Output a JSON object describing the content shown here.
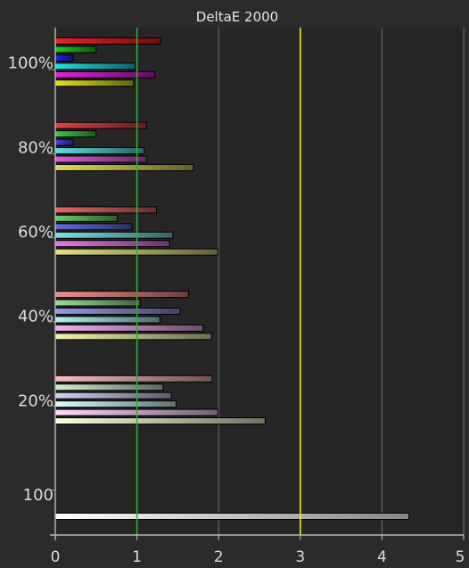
{
  "chart_data": {
    "type": "bar",
    "orientation": "horizontal",
    "title": "DeltaE 2000",
    "xlabel": "",
    "ylabel": "",
    "xlim": [
      0,
      5
    ],
    "x_ticks": [
      "0",
      "1",
      "2",
      "3",
      "4",
      "5"
    ],
    "grid": true,
    "reference_lines": [
      {
        "value": 1,
        "color": "#2fae2f"
      },
      {
        "value": 3,
        "color": "#f2e600"
      }
    ],
    "groups": [
      {
        "label": "100%",
        "bars": [
          {
            "color": "#c01a1a",
            "value": 1.29
          },
          {
            "color": "#1aa01a",
            "value": 0.5
          },
          {
            "color": "#1a1ac8",
            "value": 0.22
          },
          {
            "color": "#1ab4b4",
            "value": 0.98
          },
          {
            "color": "#b41ab4",
            "value": 1.22
          },
          {
            "color": "#b4b41a",
            "value": 0.96
          }
        ]
      },
      {
        "label": "80%",
        "bars": [
          {
            "color": "#b23434",
            "value": 1.12
          },
          {
            "color": "#34a034",
            "value": 0.5
          },
          {
            "color": "#3434b8",
            "value": 0.22
          },
          {
            "color": "#4ab2b2",
            "value": 1.09
          },
          {
            "color": "#b04ab0",
            "value": 1.12
          },
          {
            "color": "#b0b04a",
            "value": 1.69
          }
        ]
      },
      {
        "label": "60%",
        "bars": [
          {
            "color": "#b85454",
            "value": 1.24
          },
          {
            "color": "#54a854",
            "value": 0.76
          },
          {
            "color": "#5454b0",
            "value": 0.94
          },
          {
            "color": "#64b4b4",
            "value": 1.44
          },
          {
            "color": "#b464b4",
            "value": 1.4
          },
          {
            "color": "#b4b464",
            "value": 1.99
          }
        ]
      },
      {
        "label": "40%",
        "bars": [
          {
            "color": "#c07272",
            "value": 1.63
          },
          {
            "color": "#7ab27a",
            "value": 1.04
          },
          {
            "color": "#7a7ab8",
            "value": 1.53
          },
          {
            "color": "#8cc4c4",
            "value": 1.28
          },
          {
            "color": "#c48cc4",
            "value": 1.81
          },
          {
            "color": "#c4c48c",
            "value": 1.91
          }
        ]
      },
      {
        "label": "20%",
        "bars": [
          {
            "color": "#c89898",
            "value": 1.92
          },
          {
            "color": "#a8c0a8",
            "value": 1.32
          },
          {
            "color": "#a8a8c4",
            "value": 1.42
          },
          {
            "color": "#b0d0d0",
            "value": 1.48
          },
          {
            "color": "#d0b0d0",
            "value": 1.99
          },
          {
            "color": "#d0d0b0",
            "value": 2.57
          }
        ]
      },
      {
        "label": "100",
        "bars": [
          {
            "color": "#f4f4f4",
            "value": 4.33
          }
        ]
      }
    ]
  }
}
